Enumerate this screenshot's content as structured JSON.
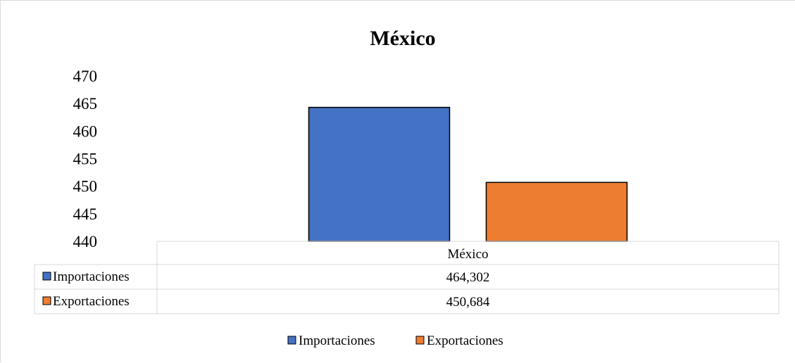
{
  "chart_data": {
    "type": "bar",
    "title": "México",
    "categories": [
      "México"
    ],
    "series": [
      {
        "name": "Importaciones",
        "values": [
          464.302
        ],
        "display": [
          "464,302"
        ],
        "color": "#4472C4"
      },
      {
        "name": "Exportaciones",
        "values": [
          450.684
        ],
        "display": [
          "450,684"
        ],
        "color": "#ED7D31"
      }
    ],
    "ylim": [
      440,
      470
    ],
    "yticks": [
      "440",
      "445",
      "450",
      "455",
      "460",
      "465",
      "470"
    ],
    "grid": false,
    "data_table": true,
    "legend_position": "bottom"
  }
}
